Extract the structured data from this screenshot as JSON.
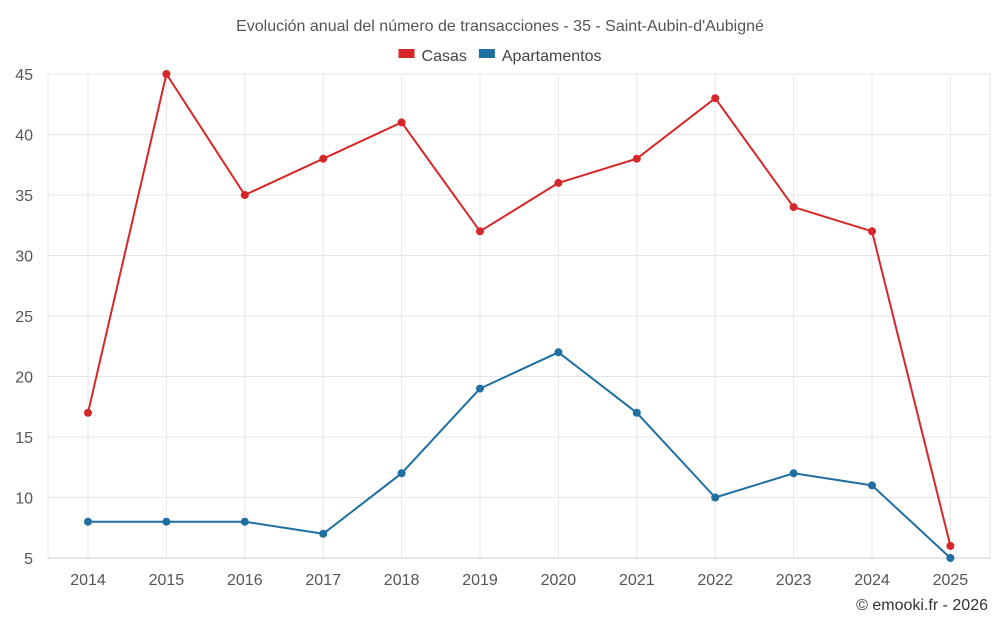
{
  "chart_data": {
    "type": "line",
    "title": "Evolución anual del número de transacciones - 35 - Saint-Aubin-d'Aubigné",
    "xlabel": "",
    "ylabel": "",
    "x": [
      "2014",
      "2015",
      "2016",
      "2017",
      "2018",
      "2019",
      "2020",
      "2021",
      "2022",
      "2023",
      "2024",
      "2025"
    ],
    "ylim": [
      5,
      45
    ],
    "yticks": [
      5,
      10,
      15,
      20,
      25,
      30,
      35,
      40,
      45
    ],
    "grid": true,
    "legend_position": "top-center",
    "series": [
      {
        "name": "Casas",
        "color": "#d62728",
        "values": [
          17,
          45,
          35,
          38,
          41,
          32,
          36,
          38,
          43,
          34,
          32,
          6
        ]
      },
      {
        "name": "Apartamentos",
        "color": "#1f6fa3",
        "values": [
          8,
          8,
          8,
          7,
          12,
          19,
          22,
          17,
          10,
          12,
          11,
          5
        ]
      }
    ]
  },
  "credit": "© emooki.fr - 2026"
}
